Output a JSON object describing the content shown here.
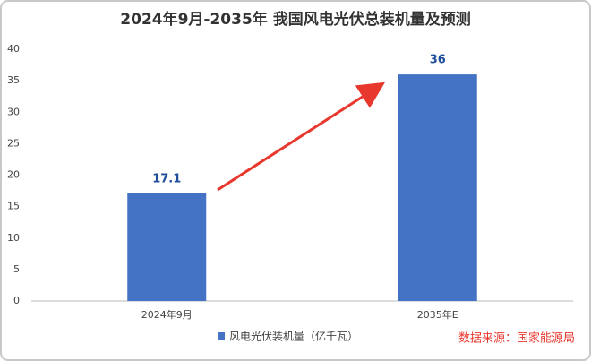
{
  "chart_data": {
    "type": "bar",
    "title": "2024年9月-2035年 我国风电光伏总装机量及预测",
    "categories": [
      "2024年9月",
      "2035年E"
    ],
    "series": [
      {
        "name": "风电光伏装机量（亿千瓦）",
        "color": "#4472c4",
        "values": [
          17.1,
          36
        ]
      }
    ],
    "ylim": [
      0,
      40
    ],
    "yticks": [
      0,
      5,
      10,
      15,
      20,
      25,
      30,
      35,
      40
    ],
    "grid": false,
    "legend": "bottom",
    "source": "数据来源：国家能源局"
  }
}
